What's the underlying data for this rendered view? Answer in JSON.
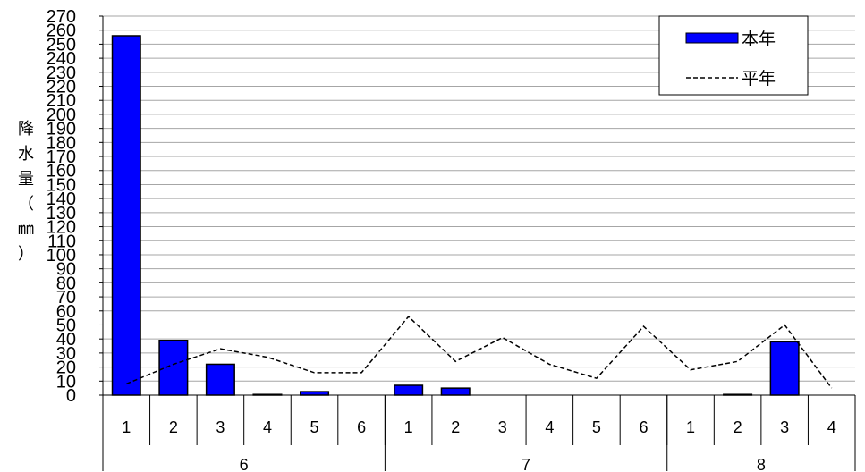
{
  "chart_data": {
    "type": "bar",
    "ylabel": "降水量（㎜）",
    "ylim": [
      0,
      270
    ],
    "y_ticks": [
      0,
      10,
      20,
      30,
      40,
      50,
      60,
      70,
      80,
      90,
      100,
      110,
      120,
      130,
      140,
      150,
      160,
      170,
      180,
      190,
      200,
      210,
      220,
      230,
      240,
      250,
      260,
      270
    ],
    "grid": true,
    "legend_position": "top-right",
    "categories": [
      "1",
      "2",
      "3",
      "4",
      "5",
      "6",
      "1",
      "2",
      "3",
      "4",
      "5",
      "6",
      "1",
      "2",
      "3",
      "4"
    ],
    "groups": [
      {
        "label": "6",
        "count": 6
      },
      {
        "label": "7",
        "count": 6
      },
      {
        "label": "8",
        "count": 4
      }
    ],
    "series": [
      {
        "name": "本年",
        "kind": "bar",
        "color": "#0000ff",
        "values": [
          256,
          39,
          22,
          0.5,
          2.5,
          0,
          7,
          5,
          0,
          0,
          0,
          0,
          0,
          0.5,
          38,
          0
        ]
      },
      {
        "name": "平年",
        "kind": "line",
        "style": "dashed",
        "color": "#000000",
        "values": [
          8,
          22,
          33,
          27,
          16,
          16,
          56,
          24,
          41,
          22,
          12,
          49,
          18,
          24,
          50,
          5
        ]
      }
    ]
  }
}
